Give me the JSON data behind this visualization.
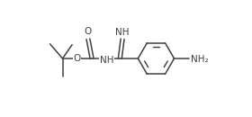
{
  "bg_color": "#ffffff",
  "line_color": "#404040",
  "text_color": "#404040",
  "line_width": 1.1,
  "font_size": 7.0,
  "fig_width": 2.8,
  "fig_height": 1.3,
  "dpi": 100,
  "xlim": [
    0,
    10
  ],
  "ylim": [
    0,
    4.6
  ]
}
